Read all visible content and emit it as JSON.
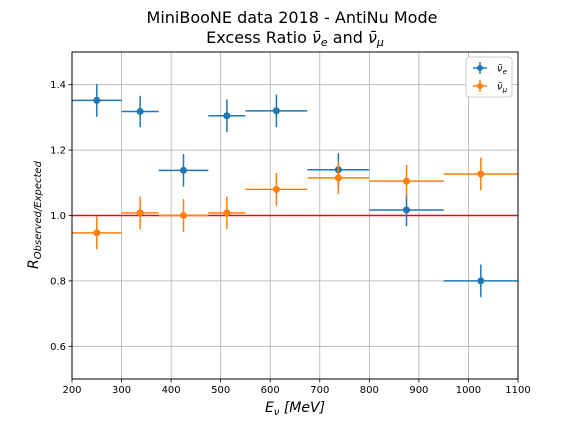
{
  "chart_data": {
    "type": "scatter",
    "title": "MiniBooNE data 2018 - AntiNu Mode",
    "subtitle": "Excess Ratio ν̄e and ν̄μ",
    "subtitle_parts": [
      "Excess Ratio ",
      "ν̄",
      "e",
      " and ",
      "ν̄",
      "μ"
    ],
    "xlabel_parts": [
      "E",
      "ν",
      " [MeV]"
    ],
    "ylabel_parts": [
      "R",
      "Observed/Expected"
    ],
    "xlim": [
      200,
      1100
    ],
    "ylim": [
      0.5,
      1.5
    ],
    "xticks": [
      200,
      300,
      400,
      500,
      600,
      700,
      800,
      900,
      1000,
      1100
    ],
    "yticks": [
      0.6,
      0.8,
      1.0,
      1.2,
      1.4
    ],
    "ytick_labels": [
      "0.6",
      "0.8",
      "1.0",
      "1.2",
      "1.4"
    ],
    "grid": true,
    "legend_position": "top-right",
    "reference_line": {
      "y": 1.0,
      "color": "#ff0000"
    },
    "series": [
      {
        "name": "ν̄e",
        "legend_parts": [
          "ν̄",
          "e"
        ],
        "color": "#1f77b4",
        "points": [
          {
            "x": 250,
            "y": 1.352,
            "xlo": 200,
            "xhi": 300,
            "yerr": 0.05
          },
          {
            "x": 337.5,
            "y": 1.318,
            "xlo": 300,
            "xhi": 375,
            "yerr": 0.048
          },
          {
            "x": 425,
            "y": 1.138,
            "xlo": 375,
            "xhi": 475,
            "yerr": 0.05
          },
          {
            "x": 512.5,
            "y": 1.305,
            "xlo": 475,
            "xhi": 550,
            "yerr": 0.05
          },
          {
            "x": 612.5,
            "y": 1.32,
            "xlo": 550,
            "xhi": 675,
            "yerr": 0.05
          },
          {
            "x": 737.5,
            "y": 1.14,
            "xlo": 675,
            "xhi": 800,
            "yerr": 0.05
          },
          {
            "x": 875,
            "y": 1.017,
            "xlo": 800,
            "xhi": 950,
            "yerr": 0.05
          },
          {
            "x": 1025,
            "y": 0.8,
            "xlo": 950,
            "xhi": 1100,
            "yerr": 0.05
          }
        ]
      },
      {
        "name": "ν̄μ",
        "legend_parts": [
          "ν̄",
          "μ"
        ],
        "color": "#ff7f0e",
        "points": [
          {
            "x": 250,
            "y": 0.947,
            "xlo": 200,
            "xhi": 300,
            "yerr": 0.05
          },
          {
            "x": 337.5,
            "y": 1.008,
            "xlo": 300,
            "xhi": 375,
            "yerr": 0.05
          },
          {
            "x": 425,
            "y": 1.0,
            "xlo": 375,
            "xhi": 475,
            "yerr": 0.05
          },
          {
            "x": 512.5,
            "y": 1.008,
            "xlo": 475,
            "xhi": 550,
            "yerr": 0.05
          },
          {
            "x": 612.5,
            "y": 1.08,
            "xlo": 550,
            "xhi": 675,
            "yerr": 0.05
          },
          {
            "x": 737.5,
            "y": 1.115,
            "xlo": 675,
            "xhi": 800,
            "yerr": 0.05
          },
          {
            "x": 875,
            "y": 1.105,
            "xlo": 800,
            "xhi": 950,
            "yerr": 0.05
          },
          {
            "x": 1025,
            "y": 1.127,
            "xlo": 950,
            "xhi": 1100,
            "yerr": 0.05
          }
        ]
      }
    ]
  }
}
